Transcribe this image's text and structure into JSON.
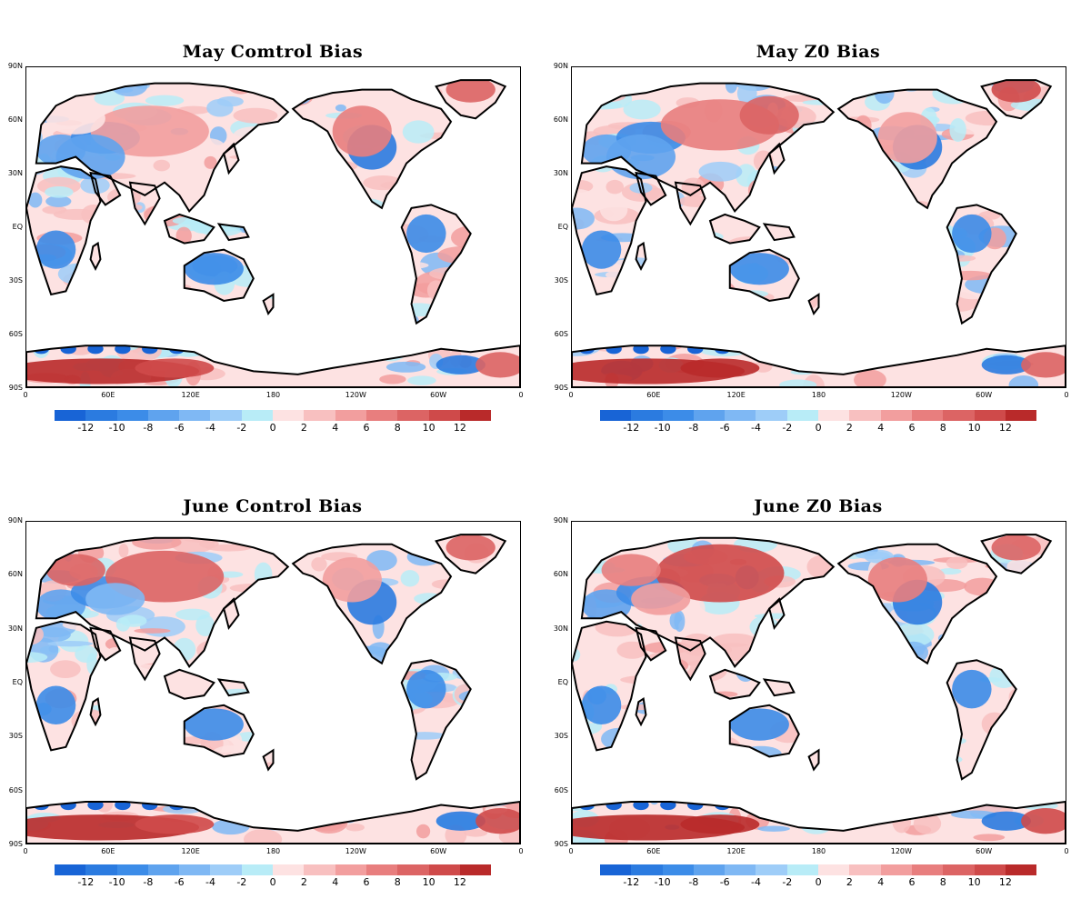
{
  "panels": [
    {
      "title": "May Comtrol Bias"
    },
    {
      "title": "May Z0 Bias"
    },
    {
      "title": "June Control Bias"
    },
    {
      "title": "June Z0 Bias"
    }
  ],
  "lat_labels": [
    "90N",
    "60N",
    "30N",
    "EQ",
    "30S",
    "60S",
    "90S"
  ],
  "lon_labels": [
    "0",
    "60E",
    "120E",
    "180",
    "120W",
    "60W",
    "0"
  ],
  "colorbar": {
    "labels": [
      "-12",
      "-10",
      "-8",
      "-6",
      "-4",
      "-2",
      "0",
      "2",
      "4",
      "6",
      "8",
      "10",
      "12"
    ],
    "colors": [
      "#1864d6",
      "#2b7be0",
      "#3c8ce8",
      "#5fa3ee",
      "#7fb8f4",
      "#9ecdf8",
      "#b8ecf7",
      "#fde2e2",
      "#f8c0c0",
      "#f29e9e",
      "#e87e7e",
      "#dc6464",
      "#cf4a4a",
      "#b92a2a"
    ]
  }
}
